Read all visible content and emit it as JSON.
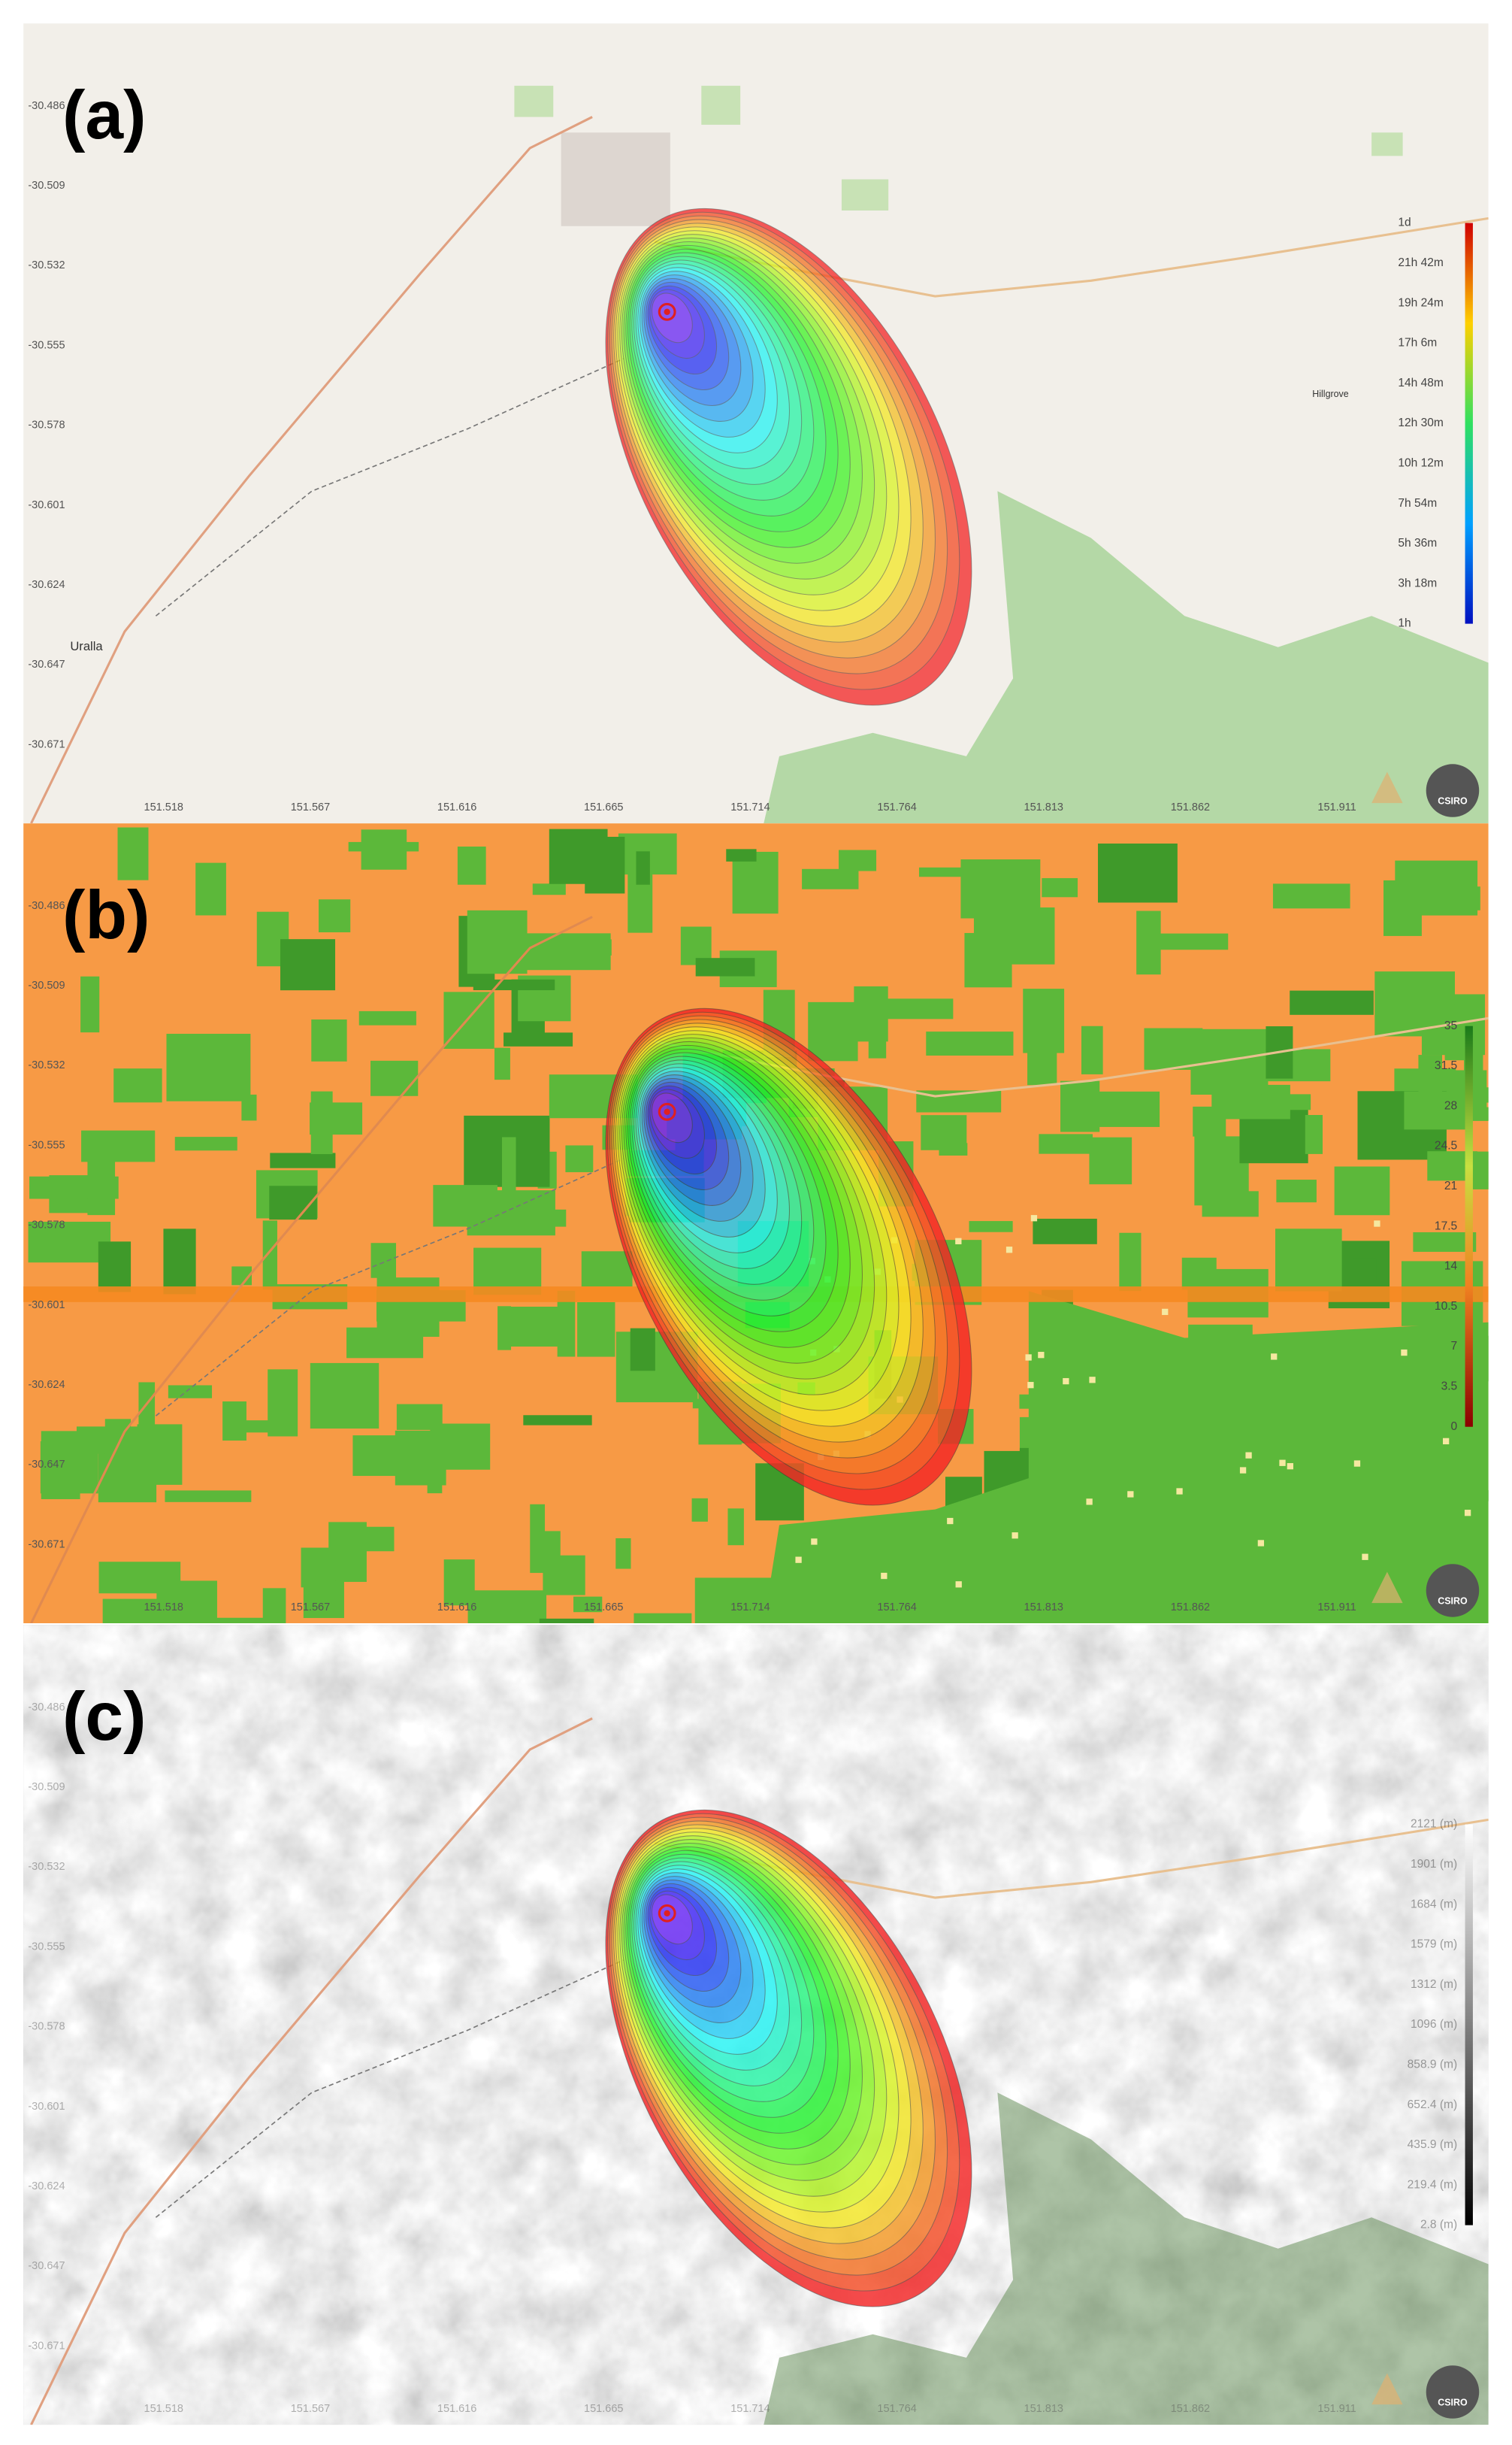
{
  "panels": [
    {
      "label": "(a)",
      "legend": [
        "1d",
        "21h 42m",
        "19h 24m",
        "17h 6m",
        "14h 48m",
        "12h 30m",
        "10h 12m",
        "7h 54m",
        "5h 36m",
        "3h 18m",
        "1h"
      ]
    },
    {
      "label": "(b)",
      "legend": [
        "35",
        "31.5",
        "28",
        "24.5",
        "21",
        "17.5",
        "14",
        "10.5",
        "7",
        "3.5",
        "0"
      ]
    },
    {
      "label": "(c)",
      "legend": [
        "2121 (m)",
        "1901 (m)",
        "1684 (m)",
        "1579 (m)",
        "1312 (m)",
        "1096 (m)",
        "858.9 (m)",
        "652.4 (m)",
        "435.9 (m)",
        "219.4 (m)",
        "2.8 (m)"
      ]
    }
  ],
  "axes": {
    "y_labels": [
      "-30.486",
      "-30.509",
      "-30.532",
      "-30.555",
      "-30.578",
      "-30.601",
      "-30.624",
      "-30.647",
      "-30.671"
    ],
    "x_labels": [
      "151.518",
      "151.567",
      "151.616",
      "151.665",
      "151.714",
      "151.764",
      "151.813",
      "151.862",
      "151.911"
    ]
  },
  "places": {
    "uralla": "Uralla",
    "hillgrove": "Hillgrove"
  },
  "logo": "CSIRO"
}
